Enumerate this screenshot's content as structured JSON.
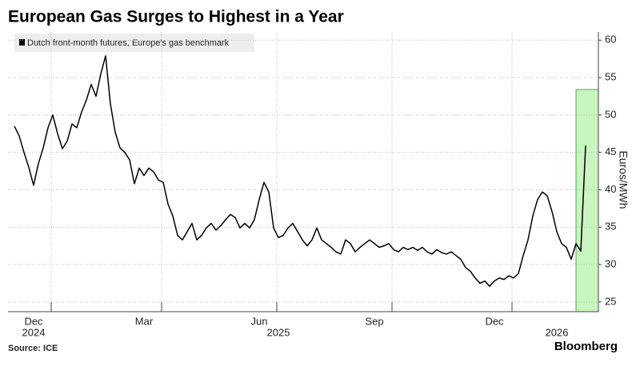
{
  "chart_data": {
    "type": "line",
    "title": "European Gas Surges to Highest in a Year",
    "source": "Source: ICE",
    "brand": "Bloomberg",
    "y_axis_label": "Euros/MWh",
    "categories": [
      null,
      null,
      null,
      null,
      "Dec",
      null,
      null,
      null,
      null,
      null,
      null,
      null,
      null,
      null,
      null,
      null,
      null,
      null,
      null,
      null,
      null,
      null,
      null,
      null,
      null,
      null,
      null,
      "Mar",
      null,
      null,
      null,
      null,
      null,
      null,
      null,
      null,
      null,
      null,
      null,
      null,
      null,
      null,
      null,
      null,
      null,
      null,
      null,
      null,
      null,
      null,
      null,
      "Jun",
      null,
      null,
      null,
      null,
      null,
      null,
      null,
      null,
      null,
      null,
      null,
      null,
      null,
      null,
      null,
      null,
      null,
      null,
      null,
      null,
      null,
      null,
      null,
      "Sep",
      null,
      null,
      null,
      null,
      null,
      null,
      null,
      null,
      null,
      null,
      null,
      null,
      null,
      null,
      null,
      null,
      null,
      null,
      null,
      null,
      null,
      null,
      null,
      null,
      "Dec",
      null,
      null,
      null,
      null,
      null,
      null,
      null,
      null,
      null,
      null,
      null,
      null,
      null,
      null,
      null,
      null,
      null,
      null,
      null
    ],
    "year_labels": [
      null,
      null,
      null,
      null,
      "2024",
      null,
      null,
      null,
      null,
      null,
      null,
      null,
      null,
      null,
      null,
      null,
      null,
      null,
      null,
      null,
      null,
      null,
      null,
      null,
      null,
      null,
      null,
      null,
      null,
      null,
      null,
      null,
      null,
      null,
      null,
      null,
      null,
      null,
      null,
      null,
      null,
      null,
      null,
      null,
      null,
      null,
      null,
      null,
      null,
      null,
      null,
      null,
      null,
      null,
      null,
      "2025",
      null,
      null,
      null,
      null,
      null,
      null,
      null,
      null,
      null,
      null,
      null,
      null,
      null,
      null,
      null,
      null,
      null,
      null,
      null,
      null,
      null,
      null,
      null,
      null,
      null,
      null,
      null,
      null,
      null,
      null,
      null,
      null,
      null,
      null,
      null,
      null,
      null,
      null,
      null,
      null,
      null,
      null,
      null,
      null,
      null,
      null,
      null,
      null,
      null,
      null,
      null,
      null,
      null,
      null,
      null,
      null,
      null,
      "2026",
      null,
      null,
      null,
      null,
      null,
      null
    ],
    "series": [
      {
        "name": "Dutch front-month futures, Europe's gas benchmark",
        "color": "#000000",
        "values": [
          48.5,
          47.2,
          45,
          43,
          40.6,
          43.5,
          45.6,
          48.3,
          50,
          47.5,
          45.5,
          46.5,
          48.8,
          48.3,
          50.4,
          52,
          54.1,
          52.5,
          55.5,
          57.9,
          51.5,
          47.7,
          45.6,
          45,
          44,
          40.8,
          42.9,
          41.9,
          42.9,
          42.4,
          41.3,
          41,
          38.1,
          36.5,
          33.9,
          33.3,
          34.4,
          35.5,
          33.3,
          33.9,
          34.9,
          35.5,
          34.6,
          35.2,
          36,
          36.7,
          36.3,
          34.9,
          35.5,
          34.9,
          36,
          38.7,
          41,
          39.7,
          34.9,
          33.6,
          33.9,
          34.9,
          35.5,
          34.4,
          33.3,
          32.5,
          33.3,
          34.9,
          33.3,
          32.8,
          32.3,
          31.7,
          31.4,
          33.3,
          32.8,
          31.7,
          32.3,
          32.8,
          33.3,
          32.8,
          32.3,
          32.5,
          32.8,
          32,
          31.7,
          32.3,
          32,
          32.3,
          31.9,
          32.3,
          31.7,
          31.4,
          32,
          31.6,
          31.4,
          31.7,
          31.2,
          30.7,
          29.6,
          29.1,
          28.2,
          27.5,
          27.8,
          27.1,
          27.8,
          28.2,
          28,
          28.5,
          28.2,
          28.8,
          31.2,
          33.3,
          36.5,
          38.7,
          39.7,
          39.2,
          37.1,
          34.4,
          32.8,
          32.3,
          30.7,
          32.8,
          31.8,
          45.9
        ]
      }
    ],
    "ylim": [
      23.7,
      61.1
    ],
    "yticks": [
      25,
      30,
      35,
      40,
      45,
      50,
      55,
      60
    ],
    "grid": true
  }
}
